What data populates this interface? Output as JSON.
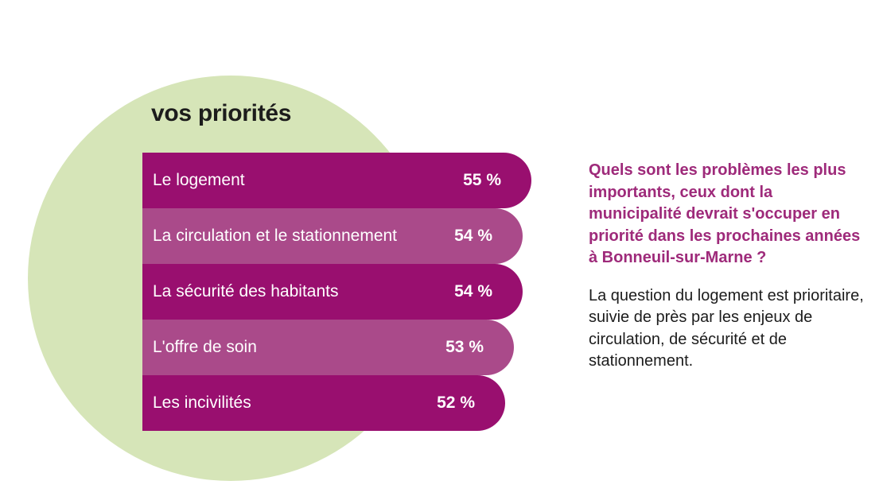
{
  "colors": {
    "circle": "#d6e5b8",
    "bar_dark": "#990f6f",
    "bar_light": "#aa4a8a",
    "question_text": "#9e2a7a",
    "body_text": "#1c1c1c"
  },
  "chart_data": {
    "type": "bar",
    "orientation": "horizontal",
    "title": "vos priorités",
    "categories": [
      "Le logement",
      "La circulation et le stationnement",
      "La sécurité des habitants",
      "L'offre de soin",
      "Les incivilités"
    ],
    "values": [
      55,
      54,
      54,
      53,
      52
    ],
    "value_labels": [
      "55 %",
      "54 %",
      "54 %",
      "53 %",
      "52 %"
    ],
    "unit": "%",
    "grid": false,
    "legend": "none"
  },
  "side": {
    "question": "Quels sont les problèmes les plus importants, ceux dont la municipalité devrait s'occuper en priorité dans les prochaines années à Bonneuil-sur-Marne ?",
    "answer": "La question du logement est prioritaire, suivie de près par les enjeux de circulation, de sécurité et de stationnement."
  }
}
